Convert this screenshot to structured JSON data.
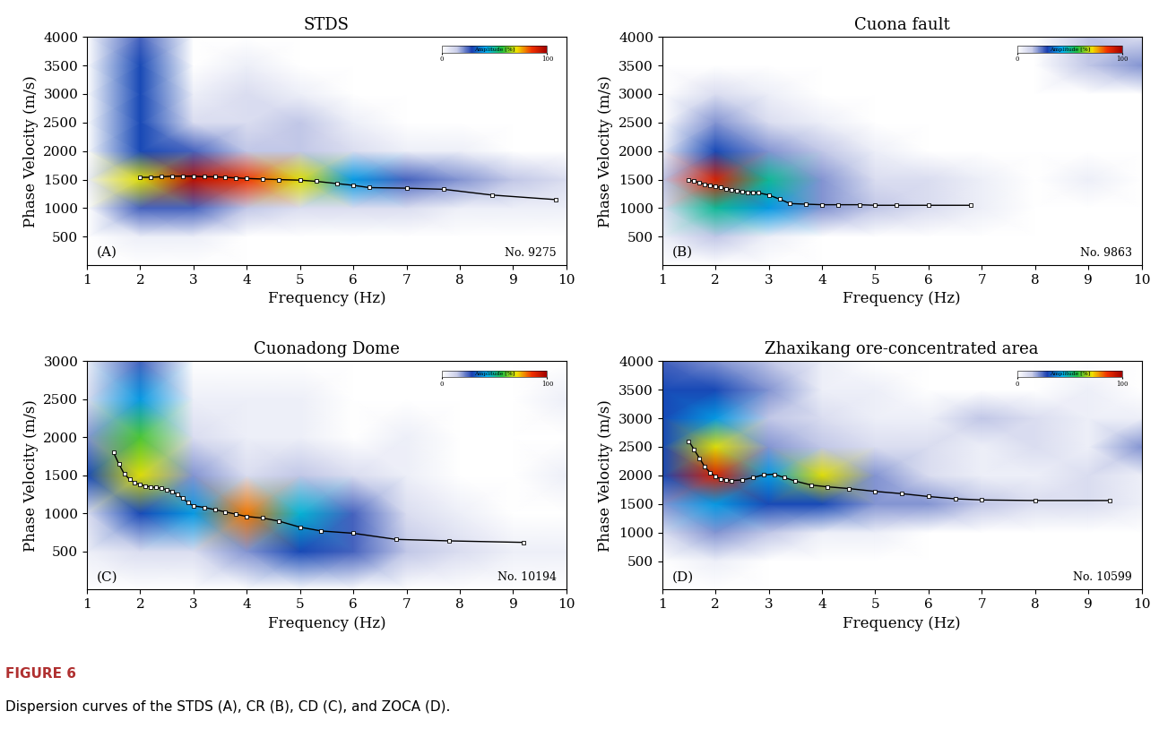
{
  "chart_data": [
    {
      "type": "heatmap",
      "title": "STDS",
      "x_label": "Frequency (Hz)",
      "y_label": "Phase Velocity (m/s)",
      "panel_label": "(A)",
      "annotation": "No. 9275",
      "xlim": [
        1,
        10
      ],
      "xticks": [
        1,
        2,
        3,
        4,
        5,
        6,
        7,
        8,
        9,
        10
      ],
      "ylim": [
        0,
        4000
      ],
      "yticks": [
        500,
        1000,
        1500,
        2000,
        2500,
        3000,
        3500,
        4000
      ],
      "cells": {
        "x": [
          1,
          2,
          3,
          4,
          5,
          6,
          7,
          8,
          9,
          10
        ],
        "y": [
          0,
          500,
          1000,
          1500,
          2000,
          2500,
          3000,
          3500,
          4000
        ],
        "values": [
          [
            0,
            0,
            0,
            0,
            0,
            0,
            0,
            0,
            0,
            0
          ],
          [
            0,
            5,
            5,
            0,
            0,
            0,
            0,
            0,
            0,
            0
          ],
          [
            0,
            25,
            25,
            15,
            10,
            10,
            10,
            5,
            5,
            5
          ],
          [
            5,
            70,
            95,
            85,
            70,
            40,
            25,
            20,
            15,
            10
          ],
          [
            0,
            30,
            25,
            15,
            15,
            10,
            5,
            5,
            0,
            0
          ],
          [
            0,
            30,
            10,
            10,
            15,
            5,
            0,
            0,
            0,
            0
          ],
          [
            0,
            30,
            5,
            10,
            5,
            0,
            0,
            0,
            0,
            0
          ],
          [
            0,
            30,
            0,
            5,
            0,
            0,
            0,
            0,
            0,
            0
          ],
          [
            0,
            25,
            0,
            0,
            0,
            0,
            0,
            0,
            0,
            0
          ]
        ]
      },
      "colorbar": {
        "range": [
          0,
          100
        ],
        "ticks": [
          0,
          100
        ],
        "label": "Amplitude [%]"
      },
      "curve": {
        "marker": "square",
        "color": "#000000",
        "x": [
          2.0,
          2.2,
          2.4,
          2.6,
          2.8,
          3.0,
          3.2,
          3.4,
          3.6,
          3.8,
          4.0,
          4.3,
          4.6,
          5.0,
          5.3,
          5.7,
          6.0,
          6.3,
          7.0,
          7.7,
          8.6,
          9.8
        ],
        "values": [
          1540,
          1540,
          1550,
          1560,
          1560,
          1560,
          1550,
          1550,
          1540,
          1530,
          1520,
          1510,
          1500,
          1490,
          1470,
          1430,
          1400,
          1360,
          1350,
          1330,
          1230,
          1150
        ]
      }
    },
    {
      "type": "heatmap",
      "title": "Cuona fault",
      "x_label": "Frequency (Hz)",
      "y_label": "Phase Velocity (m/s)",
      "panel_label": "(B)",
      "annotation": "No. 9863",
      "xlim": [
        1,
        10
      ],
      "xticks": [
        1,
        2,
        3,
        4,
        5,
        6,
        7,
        8,
        9,
        10
      ],
      "ylim": [
        0,
        4000
      ],
      "yticks": [
        500,
        1000,
        1500,
        2000,
        2500,
        3000,
        3500,
        4000
      ],
      "cells": {
        "x": [
          1,
          2,
          3,
          4,
          5,
          6,
          7,
          8,
          9,
          10
        ],
        "y": [
          0,
          500,
          1000,
          1500,
          2000,
          2500,
          3000,
          3500,
          4000
        ],
        "values": [
          [
            0,
            0,
            0,
            0,
            0,
            0,
            0,
            0,
            0,
            0
          ],
          [
            5,
            15,
            5,
            0,
            0,
            0,
            0,
            0,
            0,
            0
          ],
          [
            10,
            50,
            40,
            20,
            15,
            10,
            5,
            0,
            0,
            0
          ],
          [
            15,
            90,
            50,
            20,
            10,
            10,
            5,
            0,
            5,
            0
          ],
          [
            5,
            30,
            20,
            15,
            5,
            0,
            0,
            0,
            0,
            0
          ],
          [
            0,
            20,
            10,
            5,
            0,
            0,
            0,
            0,
            0,
            0
          ],
          [
            0,
            10,
            5,
            0,
            0,
            0,
            0,
            0,
            0,
            0
          ],
          [
            0,
            0,
            0,
            0,
            0,
            0,
            0,
            0,
            15,
            20
          ],
          [
            0,
            0,
            0,
            0,
            0,
            0,
            0,
            0,
            15,
            10
          ]
        ]
      },
      "colorbar": {
        "range": [
          0,
          100
        ],
        "ticks": [
          0,
          100
        ],
        "label": "Amplitude [%]"
      },
      "curve": {
        "marker": "square",
        "color": "#000000",
        "x": [
          1.5,
          1.6,
          1.7,
          1.8,
          1.9,
          2.0,
          2.1,
          2.2,
          2.3,
          2.4,
          2.5,
          2.6,
          2.7,
          2.8,
          3.0,
          3.2,
          3.4,
          3.7,
          4.0,
          4.3,
          4.7,
          5.0,
          5.4,
          6.0,
          6.8
        ],
        "values": [
          1490,
          1470,
          1450,
          1420,
          1400,
          1380,
          1360,
          1340,
          1320,
          1300,
          1290,
          1280,
          1280,
          1270,
          1230,
          1160,
          1080,
          1070,
          1060,
          1060,
          1060,
          1050,
          1050,
          1050,
          1050
        ]
      }
    },
    {
      "type": "heatmap",
      "title": "Cuonadong Dome",
      "x_label": "Frequency (Hz)",
      "y_label": "Phase Velocity (m/s)",
      "panel_label": "(C)",
      "annotation": "No. 10194",
      "xlim": [
        1,
        10
      ],
      "xticks": [
        1,
        2,
        3,
        4,
        5,
        6,
        7,
        8,
        9,
        10
      ],
      "ylim": [
        0,
        3000
      ],
      "yticks": [
        500,
        1000,
        1500,
        2000,
        2500,
        3000
      ],
      "cells": {
        "x": [
          1,
          2,
          3,
          4,
          5,
          6,
          7,
          8,
          9,
          10
        ],
        "y": [
          0,
          500,
          1000,
          1500,
          2000,
          2500,
          3000
        ],
        "values": [
          [
            0,
            0,
            0,
            0,
            0,
            0,
            0,
            0,
            0,
            0
          ],
          [
            5,
            10,
            10,
            20,
            30,
            25,
            15,
            10,
            5,
            5
          ],
          [
            10,
            30,
            40,
            80,
            45,
            25,
            10,
            5,
            0,
            0
          ],
          [
            30,
            70,
            20,
            10,
            15,
            10,
            5,
            0,
            0,
            5
          ],
          [
            20,
            60,
            10,
            5,
            5,
            0,
            5,
            0,
            0,
            0
          ],
          [
            10,
            40,
            5,
            5,
            5,
            0,
            0,
            0,
            0,
            5
          ],
          [
            5,
            25,
            0,
            0,
            0,
            0,
            0,
            0,
            0,
            0
          ]
        ]
      },
      "colorbar": {
        "range": [
          0,
          100
        ],
        "ticks": [
          0,
          100
        ],
        "label": "Amplitude [%]"
      },
      "curve": {
        "marker": "square",
        "color": "#000000",
        "x": [
          1.5,
          1.6,
          1.7,
          1.8,
          1.9,
          2.0,
          2.1,
          2.2,
          2.3,
          2.4,
          2.5,
          2.6,
          2.7,
          2.8,
          2.9,
          3.0,
          3.2,
          3.4,
          3.6,
          3.8,
          4.0,
          4.3,
          4.6,
          5.0,
          5.4,
          6.0,
          6.8,
          7.8,
          9.2
        ],
        "values": [
          1800,
          1650,
          1520,
          1450,
          1400,
          1380,
          1360,
          1350,
          1340,
          1330,
          1310,
          1290,
          1250,
          1200,
          1140,
          1100,
          1080,
          1050,
          1020,
          990,
          960,
          940,
          900,
          820,
          770,
          740,
          660,
          640,
          620
        ]
      }
    },
    {
      "type": "heatmap",
      "title": "Zhaxikang ore-concentrated area",
      "x_label": "Frequency (Hz)",
      "y_label": "Phase Velocity (m/s)",
      "panel_label": "(D)",
      "annotation": "No. 10599",
      "xlim": [
        1,
        10
      ],
      "xticks": [
        1,
        2,
        3,
        4,
        5,
        6,
        7,
        8,
        9,
        10
      ],
      "ylim": [
        0,
        4000
      ],
      "yticks": [
        500,
        1000,
        1500,
        2000,
        2500,
        3000,
        3500,
        4000
      ],
      "cells": {
        "x": [
          1,
          2,
          3,
          4,
          5,
          6,
          7,
          8,
          9,
          10
        ],
        "y": [
          0,
          500,
          1000,
          1500,
          2000,
          2500,
          3000,
          3500,
          4000
        ],
        "values": [
          [
            0,
            0,
            0,
            0,
            0,
            0,
            0,
            0,
            0,
            0
          ],
          [
            0,
            5,
            0,
            0,
            0,
            0,
            0,
            0,
            0,
            0
          ],
          [
            10,
            20,
            15,
            5,
            5,
            0,
            0,
            0,
            0,
            0
          ],
          [
            20,
            40,
            30,
            30,
            20,
            20,
            15,
            10,
            10,
            5
          ],
          [
            30,
            90,
            40,
            70,
            20,
            10,
            5,
            5,
            10,
            5
          ],
          [
            30,
            70,
            20,
            15,
            10,
            10,
            5,
            10,
            5,
            20
          ],
          [
            30,
            40,
            15,
            10,
            5,
            5,
            15,
            10,
            5,
            5
          ],
          [
            30,
            30,
            20,
            5,
            5,
            0,
            0,
            0,
            5,
            0
          ],
          [
            25,
            20,
            15,
            5,
            0,
            0,
            0,
            0,
            0,
            0
          ]
        ]
      },
      "colorbar": {
        "range": [
          0,
          100
        ],
        "ticks": [
          0,
          100
        ],
        "label": "Amplitude [%]"
      },
      "curve": {
        "marker": "square",
        "color": "#000000",
        "x": [
          1.5,
          1.6,
          1.7,
          1.8,
          1.9,
          2.0,
          2.1,
          2.2,
          2.3,
          2.5,
          2.7,
          2.9,
          3.1,
          3.3,
          3.5,
          3.8,
          4.1,
          4.5,
          5.0,
          5.5,
          6.0,
          6.5,
          7.0,
          8.0,
          9.4
        ],
        "values": [
          2600,
          2450,
          2300,
          2150,
          2050,
          1980,
          1940,
          1920,
          1910,
          1920,
          1960,
          2010,
          2020,
          1960,
          1900,
          1830,
          1800,
          1770,
          1720,
          1680,
          1630,
          1590,
          1570,
          1560,
          1560
        ]
      }
    }
  ],
  "caption": {
    "label": "FIGURE 6",
    "text": "Dispersion curves of the STDS (A), CR (B), CD (C), and ZOCA (D)."
  }
}
